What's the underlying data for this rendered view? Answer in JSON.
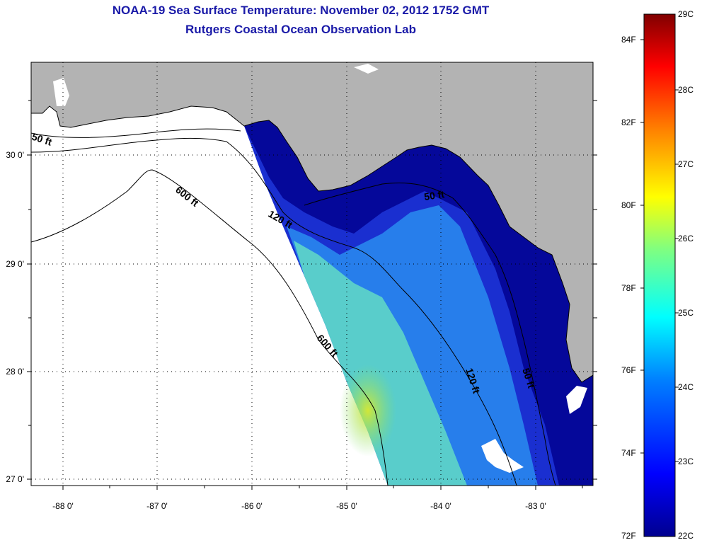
{
  "title": "NOAA-19 Sea Surface Temperature:  November 02, 2012 1752 GMT",
  "subtitle": "Rutgers Coastal Ocean Observation Lab",
  "colors": {
    "land": "#b3b3b3",
    "title": "#1a1aa8",
    "no_data": "#ffffff",
    "colormap": [
      "#00008f",
      "#0000ff",
      "#0080ff",
      "#00ffff",
      "#80ff80",
      "#ffff00",
      "#ff8000",
      "#ff0000",
      "#800000"
    ]
  },
  "axes": {
    "x_ticks": [
      "-88 0'",
      "-87 0'",
      "-86 0'",
      "-85 0'",
      "-84 0'",
      "-83 0'"
    ],
    "y_ticks": [
      "30 0'",
      "29 0'",
      "28 0'",
      "27 0'"
    ],
    "grid": "dotted"
  },
  "contours": [
    {
      "label": "50 ft",
      "instance": "west"
    },
    {
      "label": "600 ft",
      "instance": "north"
    },
    {
      "label": "120 ft",
      "instance": "north"
    },
    {
      "label": "50 ft",
      "instance": "coast-north"
    },
    {
      "label": "600 ft",
      "instance": "south"
    },
    {
      "label": "120 ft",
      "instance": "south"
    },
    {
      "label": "50 ft",
      "instance": "coast-south"
    }
  ],
  "colorbar": {
    "fahrenheit": [
      "84F",
      "82F",
      "80F",
      "78F",
      "76F",
      "74F",
      "72F"
    ],
    "celsius": [
      "29C",
      "28C",
      "27C",
      "26C",
      "25C",
      "24C",
      "23C",
      "22C"
    ],
    "range_c": [
      22,
      29
    ],
    "range_f": [
      72,
      84
    ]
  }
}
